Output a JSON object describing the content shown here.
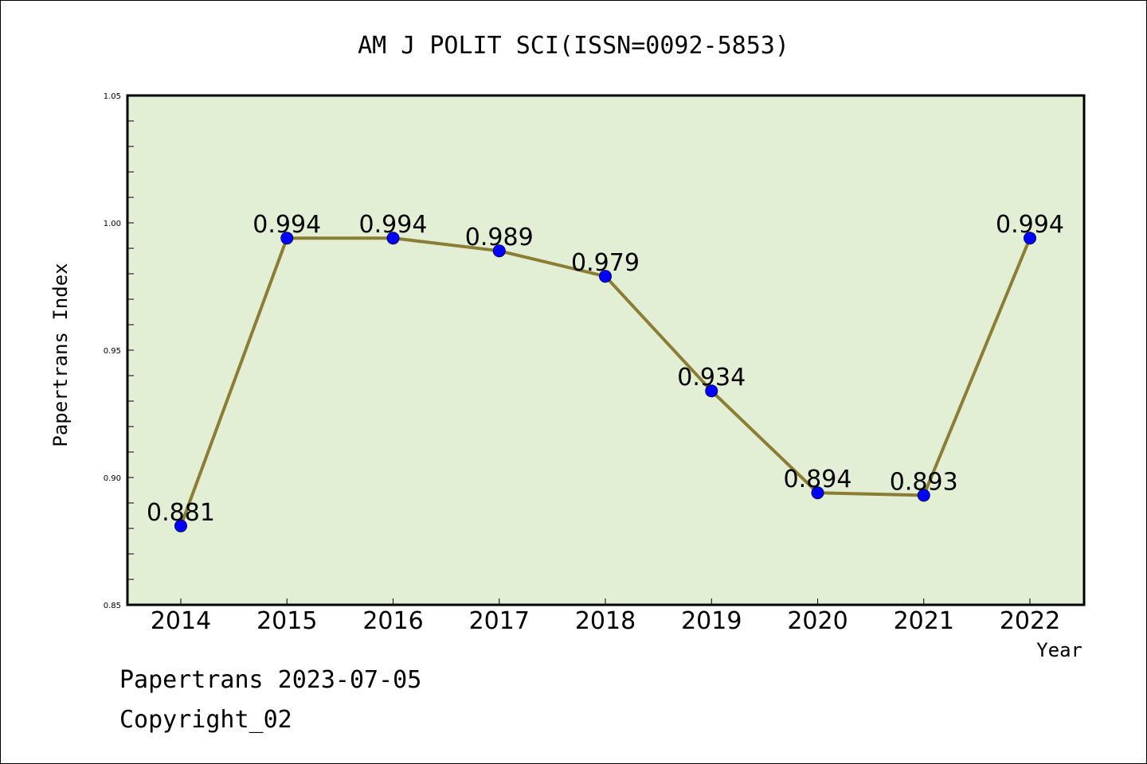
{
  "chart_data": {
    "type": "line",
    "title": "AM J POLIT SCI(ISSN=0092-5853)",
    "xlabel": "Year",
    "ylabel": "Papertrans Index",
    "categories": [
      "2014",
      "2015",
      "2016",
      "2017",
      "2018",
      "2019",
      "2020",
      "2021",
      "2022"
    ],
    "series": [
      {
        "values": [
          0.881,
          0.994,
          0.994,
          0.989,
          0.979,
          0.934,
          0.894,
          0.893,
          0.994
        ]
      }
    ],
    "data_labels": [
      "0.881",
      "0.994",
      "0.994",
      "0.989",
      "0.979",
      "0.934",
      "0.894",
      "0.893",
      "0.994"
    ],
    "yticks": [
      "0.85",
      "0.90",
      "0.95",
      "1.00",
      "1.05"
    ],
    "ylim": [
      0.85,
      1.05
    ],
    "grid": false,
    "colors": {
      "plot_bg": "#e2efd5",
      "line": "#8b7d34",
      "marker": "#0000ff"
    }
  },
  "footer": {
    "line1": "Papertrans 2023-07-05",
    "line2": "Copyright_02"
  }
}
